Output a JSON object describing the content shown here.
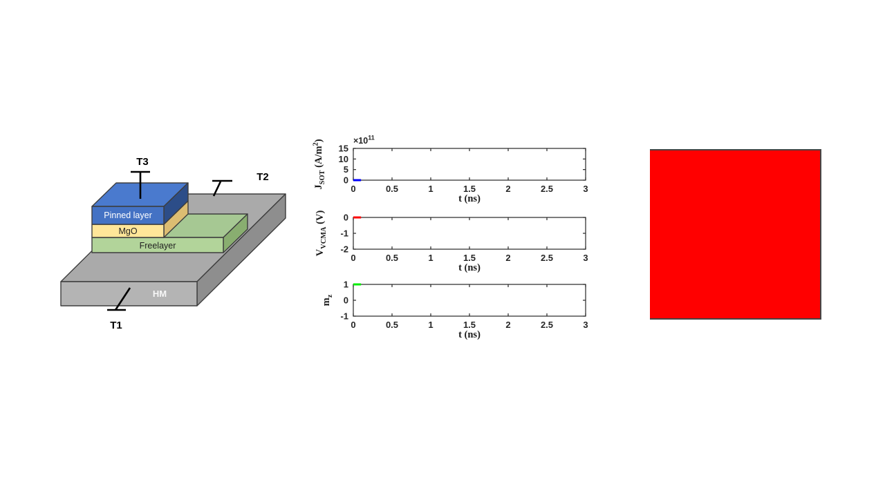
{
  "device": {
    "terminals": {
      "t1": "T1",
      "t2": "T2",
      "t3": "T3"
    },
    "layers": {
      "pinned": {
        "label": "Pinned layer",
        "front": "#4472c4",
        "top": "#4a7ace",
        "side": "#2c4d88",
        "text": "#ffffff"
      },
      "mgo": {
        "label": "MgO",
        "front": "#ffe699",
        "side": "#dcbd72",
        "text": "#1f1f1f"
      },
      "free": {
        "label": "Freelayer",
        "front": "#b2d49a",
        "top": "#a6c893",
        "side": "#89ae70",
        "text": "#1f1f1f"
      },
      "hm": {
        "label": "HM",
        "front": "#b4b4b4",
        "top": "#aaaaaa",
        "side": "#8e8e8e",
        "text": "#f7f7f7"
      }
    }
  },
  "chart_data": [
    {
      "type": "line",
      "title": "",
      "xlabel": "t (ns)",
      "ylabel": "J_SOT (A/m^2)",
      "ylabel_parts": [
        [
          "n",
          "J"
        ],
        [
          "sub",
          "SOT"
        ],
        [
          "n",
          " (A/m"
        ],
        [
          "sup",
          "2"
        ],
        [
          "n",
          ")"
        ]
      ],
      "offset_parts": [
        [
          "n",
          "×10"
        ],
        [
          "sup",
          "11"
        ]
      ],
      "xlim": [
        0,
        3
      ],
      "ylim": [
        0,
        15
      ],
      "xticks": [
        0,
        0.5,
        1,
        1.5,
        2,
        2.5,
        3
      ],
      "xtick_labels": [
        "0",
        "0.5",
        "1",
        "1.5",
        "2",
        "2.5",
        "3"
      ],
      "yticks": [
        0,
        5,
        10,
        15
      ],
      "ytick_labels": [
        "0",
        "5",
        "10",
        "15"
      ],
      "grid": false,
      "series": [
        {
          "name": "J_SOT",
          "color": "#0000ff",
          "x": [
            0,
            0.1
          ],
          "y": [
            0,
            0
          ]
        }
      ]
    },
    {
      "type": "line",
      "title": "",
      "xlabel": "t (ns)",
      "ylabel": "V_VCMA (V)",
      "ylabel_parts": [
        [
          "n",
          "V"
        ],
        [
          "sub",
          "VCMA"
        ],
        [
          "n",
          " (V)"
        ]
      ],
      "xlim": [
        0,
        3
      ],
      "ylim": [
        -2,
        0
      ],
      "xticks": [
        0,
        0.5,
        1,
        1.5,
        2,
        2.5,
        3
      ],
      "xtick_labels": [
        "0",
        "0.5",
        "1",
        "1.5",
        "2",
        "2.5",
        "3"
      ],
      "yticks": [
        -2,
        -1,
        0
      ],
      "ytick_labels": [
        "-2",
        "-1",
        "0"
      ],
      "grid": false,
      "series": [
        {
          "name": "V_VCMA",
          "color": "#ff0000",
          "x": [
            0,
            0.1
          ],
          "y": [
            0,
            0
          ]
        }
      ]
    },
    {
      "type": "line",
      "title": "",
      "xlabel": "t (ns)",
      "ylabel": "m_z",
      "ylabel_parts": [
        [
          "n",
          "m"
        ],
        [
          "sub",
          "z"
        ]
      ],
      "xlim": [
        0,
        3
      ],
      "ylim": [
        -1,
        1
      ],
      "xticks": [
        0,
        0.5,
        1,
        1.5,
        2,
        2.5,
        3
      ],
      "xtick_labels": [
        "0",
        "0.5",
        "1",
        "1.5",
        "2",
        "2.5",
        "3"
      ],
      "yticks": [
        -1,
        0,
        1
      ],
      "ytick_labels": [
        "-1",
        "0",
        "1"
      ],
      "grid": false,
      "series": [
        {
          "name": "m_z",
          "color": "#00ee00",
          "x": [
            0,
            0.1
          ],
          "y": [
            1,
            1
          ]
        }
      ]
    }
  ],
  "state_square": {
    "fill": "#ff0000",
    "border": "#454545"
  }
}
